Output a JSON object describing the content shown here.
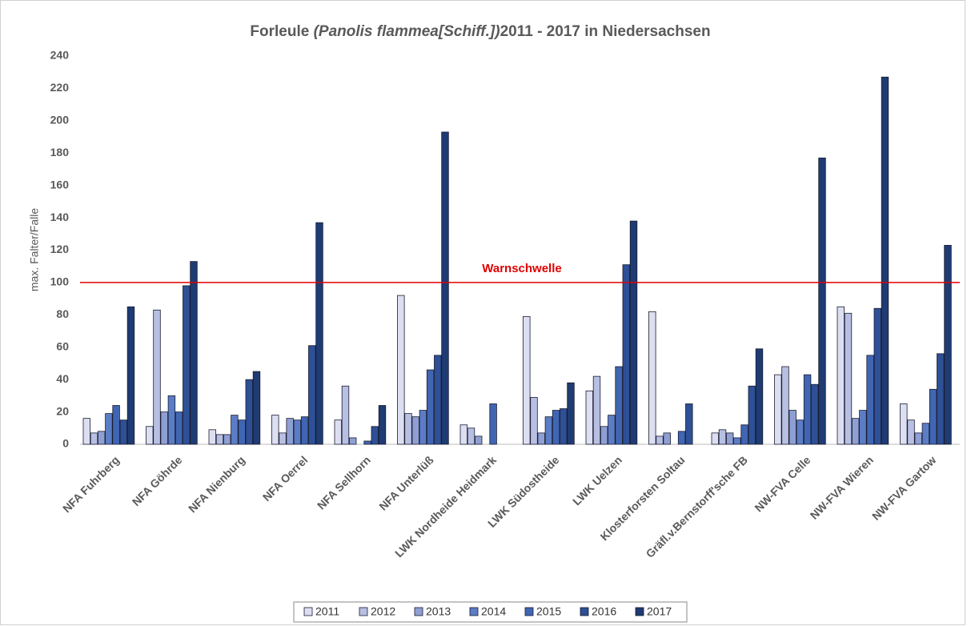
{
  "chart_data": {
    "type": "bar",
    "title": [
      "Forleule ",
      "(Panolis flammea[Schiff.])",
      "2011 - 2017 in Niedersachsen"
    ],
    "ylabel": "max. Falter/Falle",
    "categories": [
      "NFA Fuhrberg",
      "NFA Göhrde",
      "NFA Nienburg",
      "NFA Oerrel",
      "NFA Sellhorn",
      "NFA Unterlüß",
      "LWK Nordheide Heidmark",
      "LWK Südostheide",
      "LWK Uelzen",
      "Klosterforsten Soltau",
      "Gräfl.v.Bernstorff'sche FB",
      "NW-FVA  Celle",
      "NW-FVA Wieren",
      "NW-FVA Gartow"
    ],
    "series": [
      {
        "name": "2011",
        "color": "#dcdff2",
        "values": [
          16,
          11,
          9,
          18,
          15,
          92,
          12,
          79,
          33,
          82,
          7,
          43,
          85,
          25
        ]
      },
      {
        "name": "2012",
        "color": "#b7c0e3",
        "values": [
          7,
          83,
          6,
          7,
          36,
          19,
          10,
          29,
          42,
          5,
          9,
          48,
          81,
          15
        ]
      },
      {
        "name": "2013",
        "color": "#8e9fd3",
        "values": [
          8,
          20,
          6,
          16,
          4,
          17,
          5,
          7,
          11,
          7,
          7,
          21,
          16,
          7
        ]
      },
      {
        "name": "2014",
        "color": "#5b7dc6",
        "values": [
          19,
          30,
          18,
          15,
          null,
          21,
          null,
          17,
          18,
          null,
          4,
          15,
          21,
          13
        ]
      },
      {
        "name": "2015",
        "color": "#4066b3",
        "values": [
          24,
          20,
          15,
          17,
          2,
          46,
          25,
          21,
          48,
          8,
          12,
          43,
          55,
          34
        ]
      },
      {
        "name": "2016",
        "color": "#2d5096",
        "values": [
          15,
          98,
          40,
          61,
          11,
          55,
          null,
          22,
          111,
          25,
          36,
          37,
          84,
          56
        ]
      },
      {
        "name": "2017",
        "color": "#1f3b73",
        "values": [
          85,
          113,
          45,
          137,
          24,
          193,
          null,
          38,
          138,
          null,
          59,
          177,
          227,
          123
        ]
      }
    ],
    "ylim": [
      0,
      240
    ],
    "yticks": [
      0,
      20,
      40,
      60,
      80,
      100,
      120,
      140,
      160,
      180,
      200,
      220,
      240
    ],
    "grid": false,
    "threshold": {
      "value": 100,
      "label": "Warnschwelle",
      "color": "#e00000"
    },
    "legend": "bottom"
  }
}
